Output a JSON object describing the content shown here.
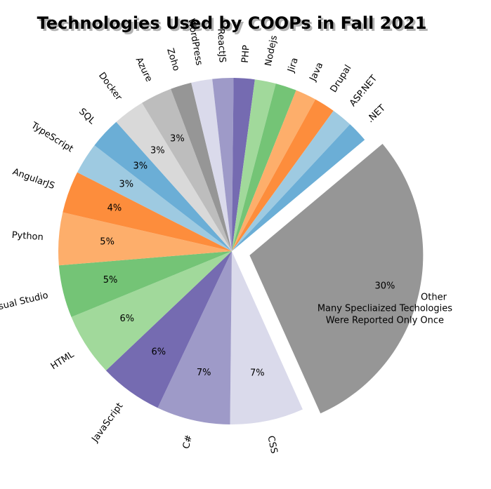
{
  "chart_data": {
    "type": "pie",
    "title": "Technologies Used by COOPs in Fall 2021",
    "annotation": "Many Specliaized Techologies\nWere Reported Only Once",
    "slices": [
      {
        "label": "Other",
        "value": 30,
        "pct_label": "30%",
        "color": "#969696",
        "exploded": true
      },
      {
        "label": "CSS",
        "value": 7,
        "pct_label": "7%",
        "color": "#dadaeb"
      },
      {
        "label": "C#",
        "value": 7,
        "pct_label": "7%",
        "color": "#9e9ac8"
      },
      {
        "label": "JavaScript",
        "value": 6,
        "pct_label": "6%",
        "color": "#756bb1"
      },
      {
        "label": "HTML",
        "value": 6,
        "pct_label": "6%",
        "color": "#a1d99b"
      },
      {
        "label": "Visual Studio",
        "value": 5,
        "pct_label": "5%",
        "color": "#74c476"
      },
      {
        "label": "Python",
        "value": 5,
        "pct_label": "5%",
        "color": "#fdae6b"
      },
      {
        "label": "AngularJS",
        "value": 4,
        "pct_label": "4%",
        "color": "#fd8d3c"
      },
      {
        "label": "TypeScript",
        "value": 3,
        "pct_label": "3%",
        "color": "#9ecae1"
      },
      {
        "label": "SQL",
        "value": 3,
        "pct_label": "3%",
        "color": "#6baed6"
      },
      {
        "label": "Docker",
        "value": 3,
        "pct_label": "3%",
        "color": "#d9d9d9"
      },
      {
        "label": "Azure",
        "value": 3,
        "pct_label": "3%",
        "color": "#bdbdbd"
      },
      {
        "label": "Zoho",
        "value": 2,
        "pct_label": "",
        "color": "#969696"
      },
      {
        "label": "WordPress",
        "value": 2,
        "pct_label": "",
        "color": "#dadaeb"
      },
      {
        "label": "ReactJS",
        "value": 2,
        "pct_label": "",
        "color": "#9e9ac8"
      },
      {
        "label": "PHP",
        "value": 2,
        "pct_label": "",
        "color": "#756bb1"
      },
      {
        "label": "Nodejs",
        "value": 2,
        "pct_label": "",
        "color": "#a1d99b"
      },
      {
        "label": "Jira",
        "value": 2,
        "pct_label": "",
        "color": "#74c476"
      },
      {
        "label": "Java",
        "value": 2,
        "pct_label": "",
        "color": "#fdae6b"
      },
      {
        "label": "Drupal",
        "value": 2,
        "pct_label": "",
        "color": "#fd8d3c"
      },
      {
        "label": "ASP.NET",
        "value": 2,
        "pct_label": "",
        "color": "#9ecae1"
      },
      {
        "label": ".NET",
        "value": 2,
        "pct_label": "",
        "color": "#6baed6"
      }
    ],
    "start_angle_deg": 40,
    "direction": "clockwise"
  }
}
